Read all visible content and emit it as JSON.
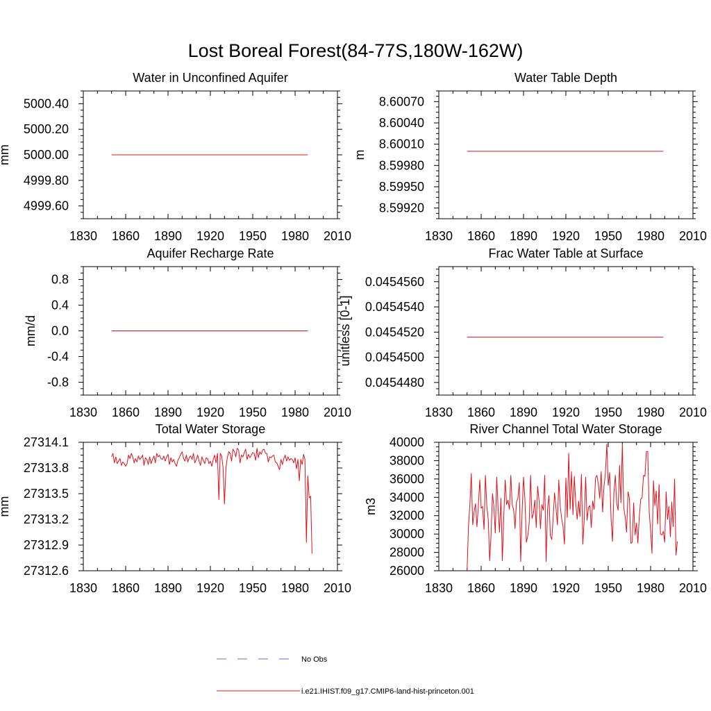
{
  "title": "Lost Boreal Forest(84-77S,180W-162W)",
  "legend": {
    "placement": "bottom-center",
    "entries": [
      {
        "label": "No Obs",
        "style": "dashed",
        "color": "#6a6ad8"
      },
      {
        "label": "i.e21.IHIST.f09_g17.CMIP6-land-hist-princeton.001",
        "style": "solid",
        "color": "#e0101a"
      }
    ]
  },
  "chart_data": [
    {
      "type": "line",
      "title": "Water in Unconfined Aquifer",
      "ylabel": "mm",
      "xlim": [
        1830,
        2010
      ],
      "x_ticks": [
        "1830",
        "1860",
        "1890",
        "1920",
        "1950",
        "1980",
        "2010"
      ],
      "ylim": [
        4999.5,
        5000.5
      ],
      "y_ticks": [
        4999.6,
        4999.8,
        5000.0,
        5000.2,
        5000.4
      ],
      "y_tick_labels": [
        "4999.60",
        "4999.80",
        "5000.00",
        "5000.20",
        "5000.40"
      ],
      "series": [
        {
          "name": "i.e21.IHIST.f09_g17.CMIP6-land-hist-princeton.001",
          "color": "#e0101a",
          "x_start": 1850,
          "x_end": 1989,
          "constant": 5000.0
        }
      ]
    },
    {
      "type": "line",
      "title": "Water Table Depth",
      "ylabel": "m",
      "xlim": [
        1830,
        2010
      ],
      "x_ticks": [
        "1830",
        "1860",
        "1890",
        "1920",
        "1950",
        "1980",
        "2010"
      ],
      "ylim": [
        8.59905,
        8.60085
      ],
      "y_ticks": [
        8.5992,
        8.5995,
        8.5998,
        8.6001,
        8.6004,
        8.6007
      ],
      "y_tick_labels": [
        "8.59920",
        "8.59950",
        "8.59980",
        "8.60010",
        "8.60040",
        "8.60070"
      ],
      "series": [
        {
          "name": "i.e21.IHIST.f09_g17.CMIP6-land-hist-princeton.001",
          "color": "#e0101a",
          "x_start": 1850,
          "x_end": 1989,
          "constant": 8.6
        }
      ]
    },
    {
      "type": "line",
      "title": "Aquifer Recharge Rate",
      "ylabel": "mm/d",
      "xlim": [
        1830,
        2010
      ],
      "x_ticks": [
        "1830",
        "1860",
        "1890",
        "1920",
        "1950",
        "1980",
        "2010"
      ],
      "ylim": [
        -1.0,
        1.0
      ],
      "y_ticks": [
        -0.8,
        -0.4,
        0.0,
        0.4,
        0.8
      ],
      "y_tick_labels": [
        "-0.8",
        "-0.4",
        "0.0",
        "0.4",
        "0.8"
      ],
      "series": [
        {
          "name": "i.e21.IHIST.f09_g17.CMIP6-land-hist-princeton.001",
          "color": "#e0101a",
          "x_start": 1850,
          "x_end": 1989,
          "constant": 0.0
        }
      ]
    },
    {
      "type": "line",
      "title": "Frac Water Table at Surface",
      "ylabel": "unitless [0-1]",
      "xlim": [
        1830,
        2010
      ],
      "x_ticks": [
        "1830",
        "1860",
        "1890",
        "1920",
        "1950",
        "1980",
        "2010"
      ],
      "ylim": [
        0.045447,
        0.0454572
      ],
      "y_ticks": [
        0.045448,
        0.04545,
        0.045452,
        0.045454,
        0.045456
      ],
      "y_tick_labels": [
        "0.0454480",
        "0.0454500",
        "0.0454520",
        "0.0454540",
        "0.0454560"
      ],
      "series": [
        {
          "name": "i.e21.IHIST.f09_g17.CMIP6-land-hist-princeton.001",
          "color": "#e0101a",
          "x_start": 1850,
          "x_end": 1989,
          "constant": 0.0454516
        }
      ]
    },
    {
      "type": "line",
      "title": "Total Water Storage",
      "ylabel": "mm",
      "xlim": [
        1830,
        2010
      ],
      "x_ticks": [
        "1830",
        "1860",
        "1890",
        "1920",
        "1950",
        "1980",
        "2010"
      ],
      "ylim": [
        27312.6,
        27314.1
      ],
      "y_ticks": [
        27312.6,
        27312.9,
        27313.2,
        27313.5,
        27313.8,
        27314.1
      ],
      "y_tick_labels": [
        "27312.6",
        "27312.9",
        "27313.2",
        "27313.5",
        "27313.8",
        "27314.1"
      ],
      "series": [
        {
          "name": "i.e21.IHIST.f09_g17.CMIP6-land-hist-princeton.001",
          "color": "#e0101a",
          "x_start": 1850,
          "values": [
            27313.93,
            27313.97,
            27313.86,
            27313.93,
            27313.85,
            27313.88,
            27313.91,
            27313.83,
            27313.87,
            27313.85,
            27313.82,
            27313.85,
            27313.95,
            27313.91,
            27313.97,
            27313.93,
            27313.86,
            27313.91,
            27313.87,
            27313.94,
            27313.9,
            27313.92,
            27313.95,
            27313.83,
            27313.92,
            27313.9,
            27313.84,
            27313.93,
            27313.85,
            27313.9,
            27313.94,
            27313.86,
            27313.97,
            27313.93,
            27313.95,
            27313.91,
            27313.9,
            27313.94,
            27313.88,
            27313.93,
            27313.96,
            27313.84,
            27313.92,
            27313.87,
            27313.9,
            27313.85,
            27313.82,
            27313.89,
            27313.92,
            27313.96,
            27313.99,
            27313.91,
            27313.88,
            27313.95,
            27313.87,
            27313.92,
            27313.94,
            27313.9,
            27313.97,
            27313.86,
            27313.9,
            27313.95,
            27313.88,
            27313.83,
            27313.93,
            27313.89,
            27313.85,
            27313.92,
            27313.91,
            27313.85,
            27313.88,
            27313.82,
            27313.9,
            27313.95,
            27313.86,
            27313.97,
            27313.43,
            27313.97,
            27313.94,
            27313.8,
            27313.38,
            27313.8,
            27313.92,
            27313.99,
            27313.97,
            27313.88,
            27314.02,
            27313.99,
            27313.93,
            27314.03,
            27314.01,
            27313.86,
            27313.95,
            27313.93,
            27313.98,
            27314.02,
            27313.9,
            27313.96,
            27313.92,
            27313.95,
            27313.98,
            27313.97,
            27313.89,
            27314.03,
            27313.92,
            27313.99,
            27313.96,
            27314.01,
            27314.02,
            27313.97,
            27313.97,
            27313.87,
            27313.93,
            27313.92,
            27313.94,
            27313.95,
            27313.87,
            27313.86,
            27313.82,
            27313.78,
            27313.9,
            27313.84,
            27313.91,
            27313.95,
            27313.88,
            27313.93,
            27313.89,
            27313.91,
            27313.9,
            27313.86,
            27313.92,
            27313.79,
            27313.9,
            27313.65,
            27313.9,
            27313.84,
            27313.96,
            27313.9,
            27312.93,
            27313.71,
            27313.45,
            27313.47,
            27312.8
          ]
        }
      ]
    },
    {
      "type": "line",
      "title": "River Channel Total Water Storage",
      "ylabel": "m3",
      "xlim": [
        1830,
        2010
      ],
      "x_ticks": [
        "1830",
        "1860",
        "1890",
        "1920",
        "1950",
        "1980",
        "2010"
      ],
      "ylim": [
        26000,
        40000
      ],
      "y_ticks": [
        26000,
        28000,
        30000,
        32000,
        34000,
        36000,
        38000,
        40000
      ],
      "y_tick_labels": [
        "26000",
        "28000",
        "30000",
        "32000",
        "34000",
        "36000",
        "38000",
        "40000"
      ],
      "series": [
        {
          "name": "i.e21.IHIST.f09_g17.CMIP6-land-hist-princeton.001",
          "color": "#e0101a",
          "x_start": 1850,
          "values": [
            26000,
            30800,
            33200,
            36600,
            31000,
            32400,
            33300,
            30800,
            33000,
            35900,
            32800,
            33000,
            30500,
            36400,
            33100,
            31600,
            27100,
            29800,
            34400,
            33000,
            30100,
            36200,
            32800,
            30200,
            33900,
            27100,
            31800,
            35900,
            33200,
            33700,
            32700,
            36400,
            33200,
            32600,
            30600,
            33500,
            33900,
            35600,
            27000,
            32500,
            36200,
            33800,
            29100,
            29800,
            31100,
            36400,
            31700,
            32200,
            33700,
            30700,
            35200,
            33600,
            30600,
            33200,
            32600,
            36400,
            27000,
            32700,
            34200,
            29800,
            29400,
            31800,
            34500,
            32800,
            31000,
            35900,
            33000,
            31700,
            30800,
            28900,
            36100,
            31800,
            38800,
            32700,
            36800,
            32100,
            36300,
            33400,
            31600,
            33600,
            31900,
            36500,
            28900,
            31600,
            36200,
            31500,
            32900,
            33100,
            30700,
            33600,
            32700,
            36100,
            36400,
            35400,
            33900,
            36800,
            32400,
            35200,
            36600,
            39800,
            35300,
            36700,
            31600,
            29200,
            34400,
            36400,
            33300,
            32600,
            37500,
            33400,
            39800,
            32800,
            31900,
            30200,
            34600,
            33900,
            29000,
            29100,
            33400,
            29900,
            31200,
            29000,
            31900,
            33800,
            34000,
            36400,
            36300,
            39000,
            39000,
            32400,
            30400,
            27900,
            35800,
            33100,
            34700,
            31100,
            35400,
            30000,
            29900,
            30300,
            29100,
            34600,
            31600,
            33000,
            29700,
            33500,
            30800,
            36000,
            27700,
            29200
          ]
        }
      ]
    }
  ]
}
